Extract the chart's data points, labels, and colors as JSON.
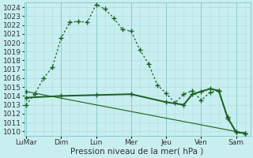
{
  "bg_color": "#c8eef0",
  "line_color": "#1a6020",
  "grid_color_minor": "#b0dede",
  "grid_color_major": "#88cccc",
  "xlabel": "Pression niveau de la mer( hPa )",
  "ylim": [
    1009.5,
    1024.5
  ],
  "yticks": [
    1010,
    1011,
    1012,
    1013,
    1014,
    1015,
    1016,
    1017,
    1018,
    1019,
    1020,
    1021,
    1022,
    1023,
    1024
  ],
  "xtick_labels": [
    "LuMar",
    "Dim",
    "Lun",
    "Mer",
    "Jeu",
    "Ven",
    "Sam"
  ],
  "xtick_positions": [
    0,
    2,
    4,
    6,
    8,
    10,
    12
  ],
  "xlim": [
    -0.1,
    12.8
  ],
  "line1_x": [
    0,
    0.5,
    1,
    1.5,
    2,
    2.5,
    3,
    3.5,
    4,
    4.5,
    5,
    5.5,
    6,
    6.5,
    7,
    7.5,
    8,
    8.5,
    9,
    9.5,
    10,
    10.5,
    11,
    11.5,
    12,
    12.5
  ],
  "line1_y": [
    1013.0,
    1014.2,
    1016.0,
    1017.2,
    1020.5,
    1022.3,
    1022.4,
    1022.3,
    1024.3,
    1023.8,
    1022.8,
    1021.5,
    1021.3,
    1019.2,
    1017.6,
    1015.2,
    1014.3,
    1013.2,
    1014.2,
    1014.6,
    1013.5,
    1014.4,
    1014.6,
    1011.5,
    1009.9,
    1009.8
  ],
  "line2_x": [
    0,
    2,
    4,
    6,
    8,
    9,
    9.5,
    10,
    10.5,
    11,
    11.5,
    12,
    12.5
  ],
  "line2_y": [
    1013.8,
    1014.0,
    1014.1,
    1014.2,
    1013.3,
    1013.0,
    1014.2,
    1014.5,
    1014.8,
    1014.6,
    1011.6,
    1009.9,
    1009.8
  ],
  "line3_x": [
    0,
    12.5
  ],
  "line3_y": [
    1014.5,
    1009.8
  ],
  "fontsize_tick": 6.5,
  "fontsize_xlabel": 7.5
}
